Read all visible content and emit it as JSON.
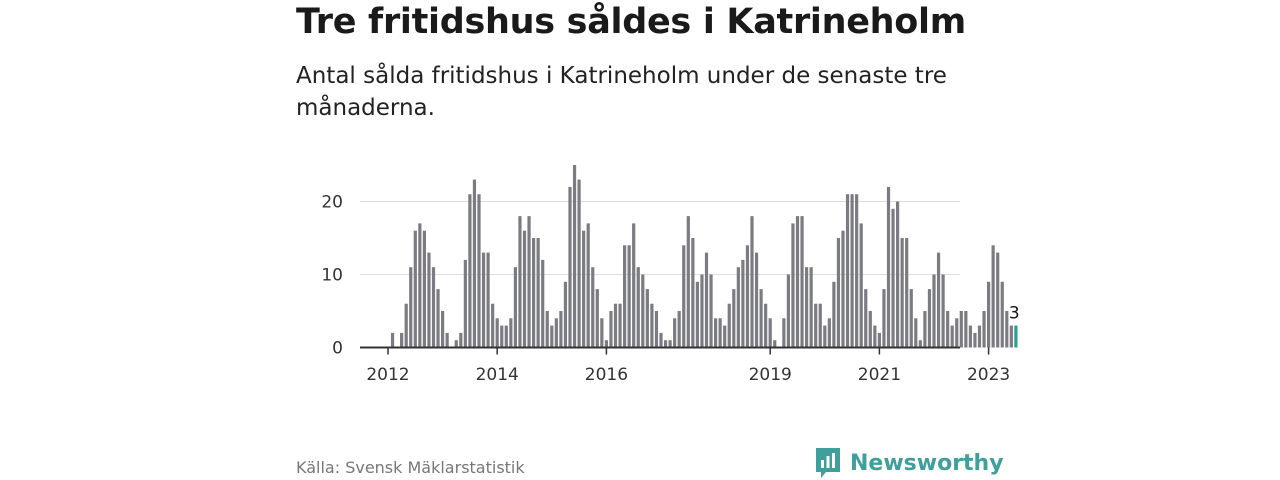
{
  "header": {
    "title": "Tre fritidshus såldes i Katrineholm",
    "subtitle": "Antal sålda fritidshus i Katrineholm under de senaste tre månaderna."
  },
  "footer": {
    "source": "Källa: Svensk Mäklarstatistik",
    "brand": "Newsworthy"
  },
  "colors": {
    "bar": "#7b7b82",
    "highlight": "#2a9d95",
    "grid": "#dddddd",
    "axis": "#333333",
    "brand": "#3f9f9a"
  },
  "chart_data": {
    "type": "bar",
    "title": "Tre fritidshus såldes i Katrineholm",
    "xlabel": "",
    "ylabel": "",
    "ylim": [
      0,
      25
    ],
    "y_ticks": [
      0,
      10,
      20
    ],
    "x_tick_labels": [
      "2012",
      "2014",
      "2016",
      "2019",
      "2021",
      "2023"
    ],
    "first_period": "2012-01",
    "highlight_last": true,
    "last_value_label": "3",
    "values": [
      0,
      2,
      0,
      2,
      6,
      11,
      16,
      17,
      16,
      13,
      11,
      8,
      5,
      2,
      0,
      1,
      2,
      12,
      21,
      23,
      21,
      13,
      13,
      6,
      4,
      3,
      3,
      4,
      11,
      18,
      16,
      18,
      15,
      15,
      12,
      5,
      3,
      4,
      5,
      9,
      22,
      25,
      23,
      16,
      17,
      11,
      8,
      4,
      1,
      5,
      6,
      6,
      14,
      14,
      17,
      11,
      10,
      8,
      6,
      5,
      2,
      1,
      1,
      4,
      5,
      14,
      18,
      15,
      9,
      10,
      13,
      10,
      4,
      4,
      3,
      6,
      8,
      11,
      12,
      14,
      18,
      13,
      8,
      6,
      4,
      1,
      0,
      4,
      10,
      17,
      18,
      18,
      11,
      11,
      6,
      6,
      3,
      4,
      9,
      15,
      16,
      21,
      21,
      21,
      17,
      8,
      5,
      3,
      2,
      8,
      22,
      19,
      20,
      15,
      15,
      8,
      4,
      1,
      5,
      8,
      10,
      13,
      10,
      5,
      3,
      4,
      5,
      5,
      3,
      2,
      3,
      5,
      9,
      14,
      13,
      9,
      5,
      3,
      3
    ]
  }
}
